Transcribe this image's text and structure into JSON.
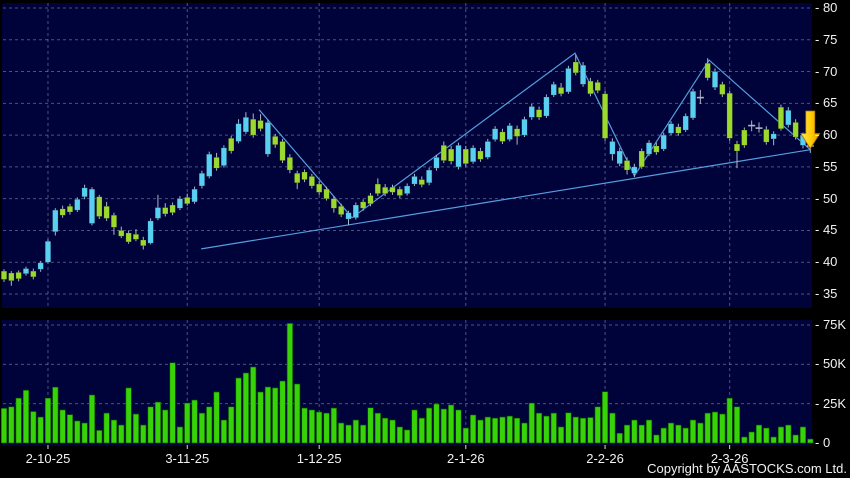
{
  "footer": {
    "copyright": "Copyright by AASTOCKS.com Ltd."
  },
  "colors": {
    "background": "#000000",
    "panel": "#00023A",
    "grid": "#98A0CC",
    "candle_green": "#9CD92F",
    "candle_cyan": "#59D0F2",
    "wick_gray": "#AEB6C6",
    "volume_bar": "#37D208",
    "volume_bar_edge": "#0A5A00",
    "trendline_blue": "#5BA6E8",
    "arrow_yellow": "#FFE65C",
    "arrow_orange": "#E89A00",
    "arrow_outline": "#A87400",
    "axis_text": "#F2F2F2"
  },
  "chart_data": {
    "type": "candlestick",
    "title": "",
    "legend": "none",
    "grid": "dashed",
    "price_axis": {
      "side": "right",
      "min": 35,
      "max": 80,
      "tick_step": 5,
      "tick_prefix": "- ",
      "tick_values": [
        80,
        75,
        70,
        65,
        60,
        55,
        50,
        45,
        40,
        35
      ]
    },
    "volume_axis": {
      "side": "right",
      "max": 78000,
      "tick_prefix": "- ",
      "tick_values": [
        75000,
        50000,
        25000,
        0
      ],
      "tick_labels": [
        "75K",
        "50K",
        "25K",
        "0"
      ]
    },
    "x_axis": {
      "labels": [
        {
          "text": "2-10-25",
          "index": 6
        },
        {
          "text": "3-11-25",
          "index": 25
        },
        {
          "text": "1-12-25",
          "index": 43
        },
        {
          "text": "2-1-26",
          "index": 63
        },
        {
          "text": "2-2-26",
          "index": 82
        },
        {
          "text": "2-3-26",
          "index": 99
        }
      ]
    },
    "candle_color_key": {
      "g": "yellow-green",
      "c": "cyan",
      "d": "gray-doji-cross"
    },
    "candles": [
      [
        37.3,
        38.9,
        36.9,
        38.6,
        "g",
        22000
      ],
      [
        38.3,
        38.6,
        36.3,
        37.1,
        "g",
        23000
      ],
      [
        37.4,
        38.7,
        37.0,
        38.4,
        "g",
        28500
      ],
      [
        38.2,
        39.3,
        37.9,
        39.0,
        "c",
        33500
      ],
      [
        38.6,
        39.0,
        37.3,
        37.7,
        "g",
        20000
      ],
      [
        38.9,
        40.2,
        38.5,
        39.9,
        "c",
        16500
      ],
      [
        40.0,
        43.6,
        39.8,
        43.3,
        "c",
        28500
      ],
      [
        44.8,
        48.5,
        44.2,
        48.2,
        "c",
        35500
      ],
      [
        48.4,
        48.9,
        47.0,
        47.4,
        "g",
        21000
      ],
      [
        47.9,
        49.2,
        47.5,
        48.8,
        "g",
        18000
      ],
      [
        48.2,
        50.2,
        47.9,
        49.9,
        "c",
        14000
      ],
      [
        50.3,
        52.2,
        49.9,
        51.7,
        "c",
        12700
      ],
      [
        51.5,
        51.8,
        45.8,
        46.1,
        "c",
        30500
      ],
      [
        47.2,
        50.6,
        46.8,
        50.3,
        "g",
        8000
      ],
      [
        48.8,
        49.5,
        46.5,
        46.9,
        "g",
        19000
      ],
      [
        47.4,
        47.8,
        44.3,
        45.5,
        "g",
        14600
      ],
      [
        45.0,
        45.6,
        43.8,
        44.1,
        "g",
        11400
      ],
      [
        44.6,
        45.0,
        42.9,
        43.2,
        "g",
        35000
      ],
      [
        44.4,
        45.2,
        43.3,
        43.6,
        "g",
        18400
      ],
      [
        43.5,
        44.0,
        42.0,
        42.6,
        "g",
        11400
      ],
      [
        43.0,
        46.9,
        42.8,
        46.5,
        "c",
        23000
      ],
      [
        46.9,
        50.6,
        46.6,
        48.6,
        "c",
        26000
      ],
      [
        48.6,
        49.3,
        47.2,
        47.6,
        "g",
        21000
      ],
      [
        47.8,
        49.4,
        47.4,
        49.0,
        "g",
        51000
      ],
      [
        48.5,
        50.4,
        48.2,
        50.0,
        "c",
        10200
      ],
      [
        50.2,
        50.8,
        48.9,
        49.2,
        "g",
        25400
      ],
      [
        49.5,
        51.9,
        49.2,
        51.5,
        "c",
        27300
      ],
      [
        52.0,
        54.4,
        51.6,
        54.0,
        "c",
        19000
      ],
      [
        53.5,
        57.4,
        53.2,
        57.0,
        "c",
        23000
      ],
      [
        56.5,
        57.2,
        54.4,
        54.8,
        "g",
        32400
      ],
      [
        55.2,
        58.4,
        54.9,
        58.0,
        "c",
        14600
      ],
      [
        57.5,
        59.9,
        57.1,
        59.5,
        "g",
        23000
      ],
      [
        59.0,
        62.5,
        58.7,
        61.8,
        "c",
        41300
      ],
      [
        60.5,
        63.6,
        60.2,
        62.8,
        "c",
        44500
      ],
      [
        62.5,
        63.4,
        59.6,
        60.0,
        "g",
        48300
      ],
      [
        61.0,
        63.3,
        60.6,
        62.3,
        "g",
        32400
      ],
      [
        62.0,
        62.4,
        56.6,
        57.0,
        "c",
        35600
      ],
      [
        58.5,
        60.2,
        58.0,
        59.8,
        "g",
        35000
      ],
      [
        59.0,
        59.4,
        55.6,
        56.0,
        "g",
        39400
      ],
      [
        56.5,
        57.0,
        54.0,
        54.5,
        "g",
        76000
      ],
      [
        54.0,
        54.4,
        51.5,
        52.5,
        "g",
        37500
      ],
      [
        53.0,
        54.6,
        52.6,
        54.2,
        "g",
        22200
      ],
      [
        53.5,
        53.9,
        51.6,
        52.0,
        "g",
        21000
      ],
      [
        52.3,
        52.8,
        50.6,
        51.0,
        "g",
        19700
      ],
      [
        51.5,
        51.9,
        49.7,
        50.0,
        "g",
        19000
      ],
      [
        50.0,
        50.4,
        47.8,
        48.5,
        "g",
        22200
      ],
      [
        48.8,
        49.2,
        47.1,
        47.5,
        "g",
        12700
      ],
      [
        46.8,
        48.1,
        45.8,
        47.8,
        "c",
        11400
      ],
      [
        47.0,
        49.4,
        46.7,
        49.0,
        "c",
        14600
      ],
      [
        48.5,
        49.9,
        48.1,
        49.5,
        "g",
        11400
      ],
      [
        49.2,
        50.9,
        48.8,
        50.5,
        "g",
        22400
      ],
      [
        50.8,
        53.2,
        50.4,
        52.3,
        "g",
        19000
      ],
      [
        51.8,
        52.3,
        50.4,
        50.8,
        "g",
        15800
      ],
      [
        51.0,
        52.2,
        50.6,
        51.8,
        "g",
        14600
      ],
      [
        51.5,
        51.9,
        50.1,
        50.5,
        "g",
        10200
      ],
      [
        50.8,
        52.4,
        50.5,
        52.0,
        "c",
        8300
      ],
      [
        52.3,
        53.9,
        52.0,
        53.5,
        "c",
        21000
      ],
      [
        53.0,
        53.5,
        51.8,
        52.2,
        "g",
        15800
      ],
      [
        52.5,
        54.9,
        52.1,
        54.5,
        "c",
        22200
      ],
      [
        54.8,
        56.9,
        54.4,
        56.5,
        "c",
        24800
      ],
      [
        56.0,
        59.0,
        55.6,
        58.4,
        "g",
        21600
      ],
      [
        57.8,
        58.3,
        55.4,
        55.9,
        "g",
        24200
      ],
      [
        55.0,
        58.8,
        54.6,
        58.4,
        "c",
        21000
      ],
      [
        57.8,
        58.3,
        55.1,
        55.5,
        "g",
        9500
      ],
      [
        55.8,
        58.4,
        55.5,
        58.0,
        "c",
        17800
      ],
      [
        57.5,
        58.0,
        55.8,
        56.2,
        "g",
        14600
      ],
      [
        56.5,
        59.4,
        56.2,
        59.0,
        "c",
        16500
      ],
      [
        59.3,
        61.4,
        59.0,
        61.0,
        "c",
        15800
      ],
      [
        60.5,
        61.0,
        58.6,
        59.0,
        "g",
        16500
      ],
      [
        59.3,
        61.9,
        59.0,
        61.5,
        "c",
        17100
      ],
      [
        61.0,
        61.5,
        58.5,
        59.8,
        "g",
        15800
      ],
      [
        60.0,
        62.9,
        59.7,
        62.5,
        "c",
        12700
      ],
      [
        62.8,
        64.9,
        62.4,
        64.5,
        "c",
        25400
      ],
      [
        64.0,
        64.5,
        62.4,
        62.8,
        "g",
        19000
      ],
      [
        63.0,
        66.4,
        62.7,
        66.0,
        "c",
        17100
      ],
      [
        66.3,
        68.4,
        66.0,
        68.0,
        "c",
        19000
      ],
      [
        67.5,
        68.2,
        66.1,
        66.5,
        "g",
        10200
      ],
      [
        66.8,
        70.9,
        66.5,
        70.5,
        "c",
        19200
      ],
      [
        69.8,
        72.6,
        69.4,
        71.5,
        "g",
        16500
      ],
      [
        71.0,
        71.5,
        67.6,
        68.0,
        "c",
        15800
      ],
      [
        68.5,
        69.0,
        66.1,
        66.5,
        "g",
        16200
      ],
      [
        67.0,
        68.7,
        66.6,
        68.3,
        "g",
        23000
      ],
      [
        66.5,
        67.0,
        59.1,
        59.5,
        "g",
        32600
      ],
      [
        59.0,
        59.5,
        56.0,
        57.0,
        "c",
        19000
      ],
      [
        57.5,
        58.0,
        55.1,
        55.5,
        "c",
        6200
      ],
      [
        56.0,
        56.5,
        53.8,
        54.5,
        "g",
        11400
      ],
      [
        54.0,
        55.5,
        53.4,
        55.0,
        "c",
        14600
      ],
      [
        55.0,
        57.9,
        54.7,
        57.5,
        "g",
        11400
      ],
      [
        57.0,
        59.2,
        56.7,
        58.8,
        "c",
        14600
      ],
      [
        58.3,
        58.8,
        56.9,
        57.3,
        "g",
        5100
      ],
      [
        57.8,
        60.4,
        57.5,
        60.0,
        "c",
        9500
      ],
      [
        60.3,
        62.2,
        60.0,
        61.8,
        "c",
        12700
      ],
      [
        61.3,
        61.8,
        59.9,
        60.3,
        "g",
        11400
      ],
      [
        60.8,
        63.4,
        60.5,
        63.0,
        "c",
        9500
      ],
      [
        62.7,
        67.3,
        62.4,
        66.9,
        "c",
        14600
      ],
      [
        65.8,
        67.1,
        64.9,
        65.9,
        "d",
        12700
      ],
      [
        69.0,
        72.1,
        68.6,
        71.3,
        "g",
        19000
      ],
      [
        70.0,
        70.5,
        67.1,
        67.5,
        "c",
        19700
      ],
      [
        68.0,
        68.4,
        66.0,
        66.4,
        "g",
        18400
      ],
      [
        66.6,
        67.0,
        59.1,
        59.5,
        "g",
        28500
      ],
      [
        58.6,
        59.1,
        54.8,
        57.5,
        "g",
        23000
      ],
      [
        58.4,
        61.2,
        58.0,
        60.8,
        "g",
        3800
      ],
      [
        61.4,
        62.3,
        60.6,
        61.5,
        "d",
        7000
      ],
      [
        61.2,
        62.0,
        60.4,
        61.1,
        "d",
        11400
      ],
      [
        60.9,
        61.4,
        58.5,
        58.9,
        "g",
        9500
      ],
      [
        59.4,
        60.6,
        58.4,
        60.2,
        "c",
        3800
      ],
      [
        61.0,
        64.8,
        60.7,
        64.4,
        "g",
        10200
      ],
      [
        63.9,
        64.4,
        61.2,
        61.6,
        "c",
        11400
      ],
      [
        62.0,
        62.5,
        59.3,
        59.7,
        "g",
        5100
      ],
      [
        60.0,
        60.4,
        57.9,
        58.4,
        "c",
        10200
      ],
      [
        58.2,
        59.4,
        57.2,
        58.3,
        "d",
        2500
      ]
    ],
    "trendlines": [
      {
        "name": "zigzag",
        "points": [
          [
            34.8,
            64.0
          ],
          [
            47.5,
            47.0
          ],
          [
            77.9,
            72.9
          ],
          [
            86.0,
            53.6
          ],
          [
            96.2,
            71.8
          ],
          [
            110,
            57.7
          ]
        ]
      },
      {
        "name": "support",
        "points": [
          [
            26.9,
            42.1
          ],
          [
            110,
            57.7
          ]
        ]
      }
    ],
    "marker": {
      "type": "down-arrow",
      "index": 110,
      "price_top": 63.8,
      "price_tip": 57.9
    }
  }
}
